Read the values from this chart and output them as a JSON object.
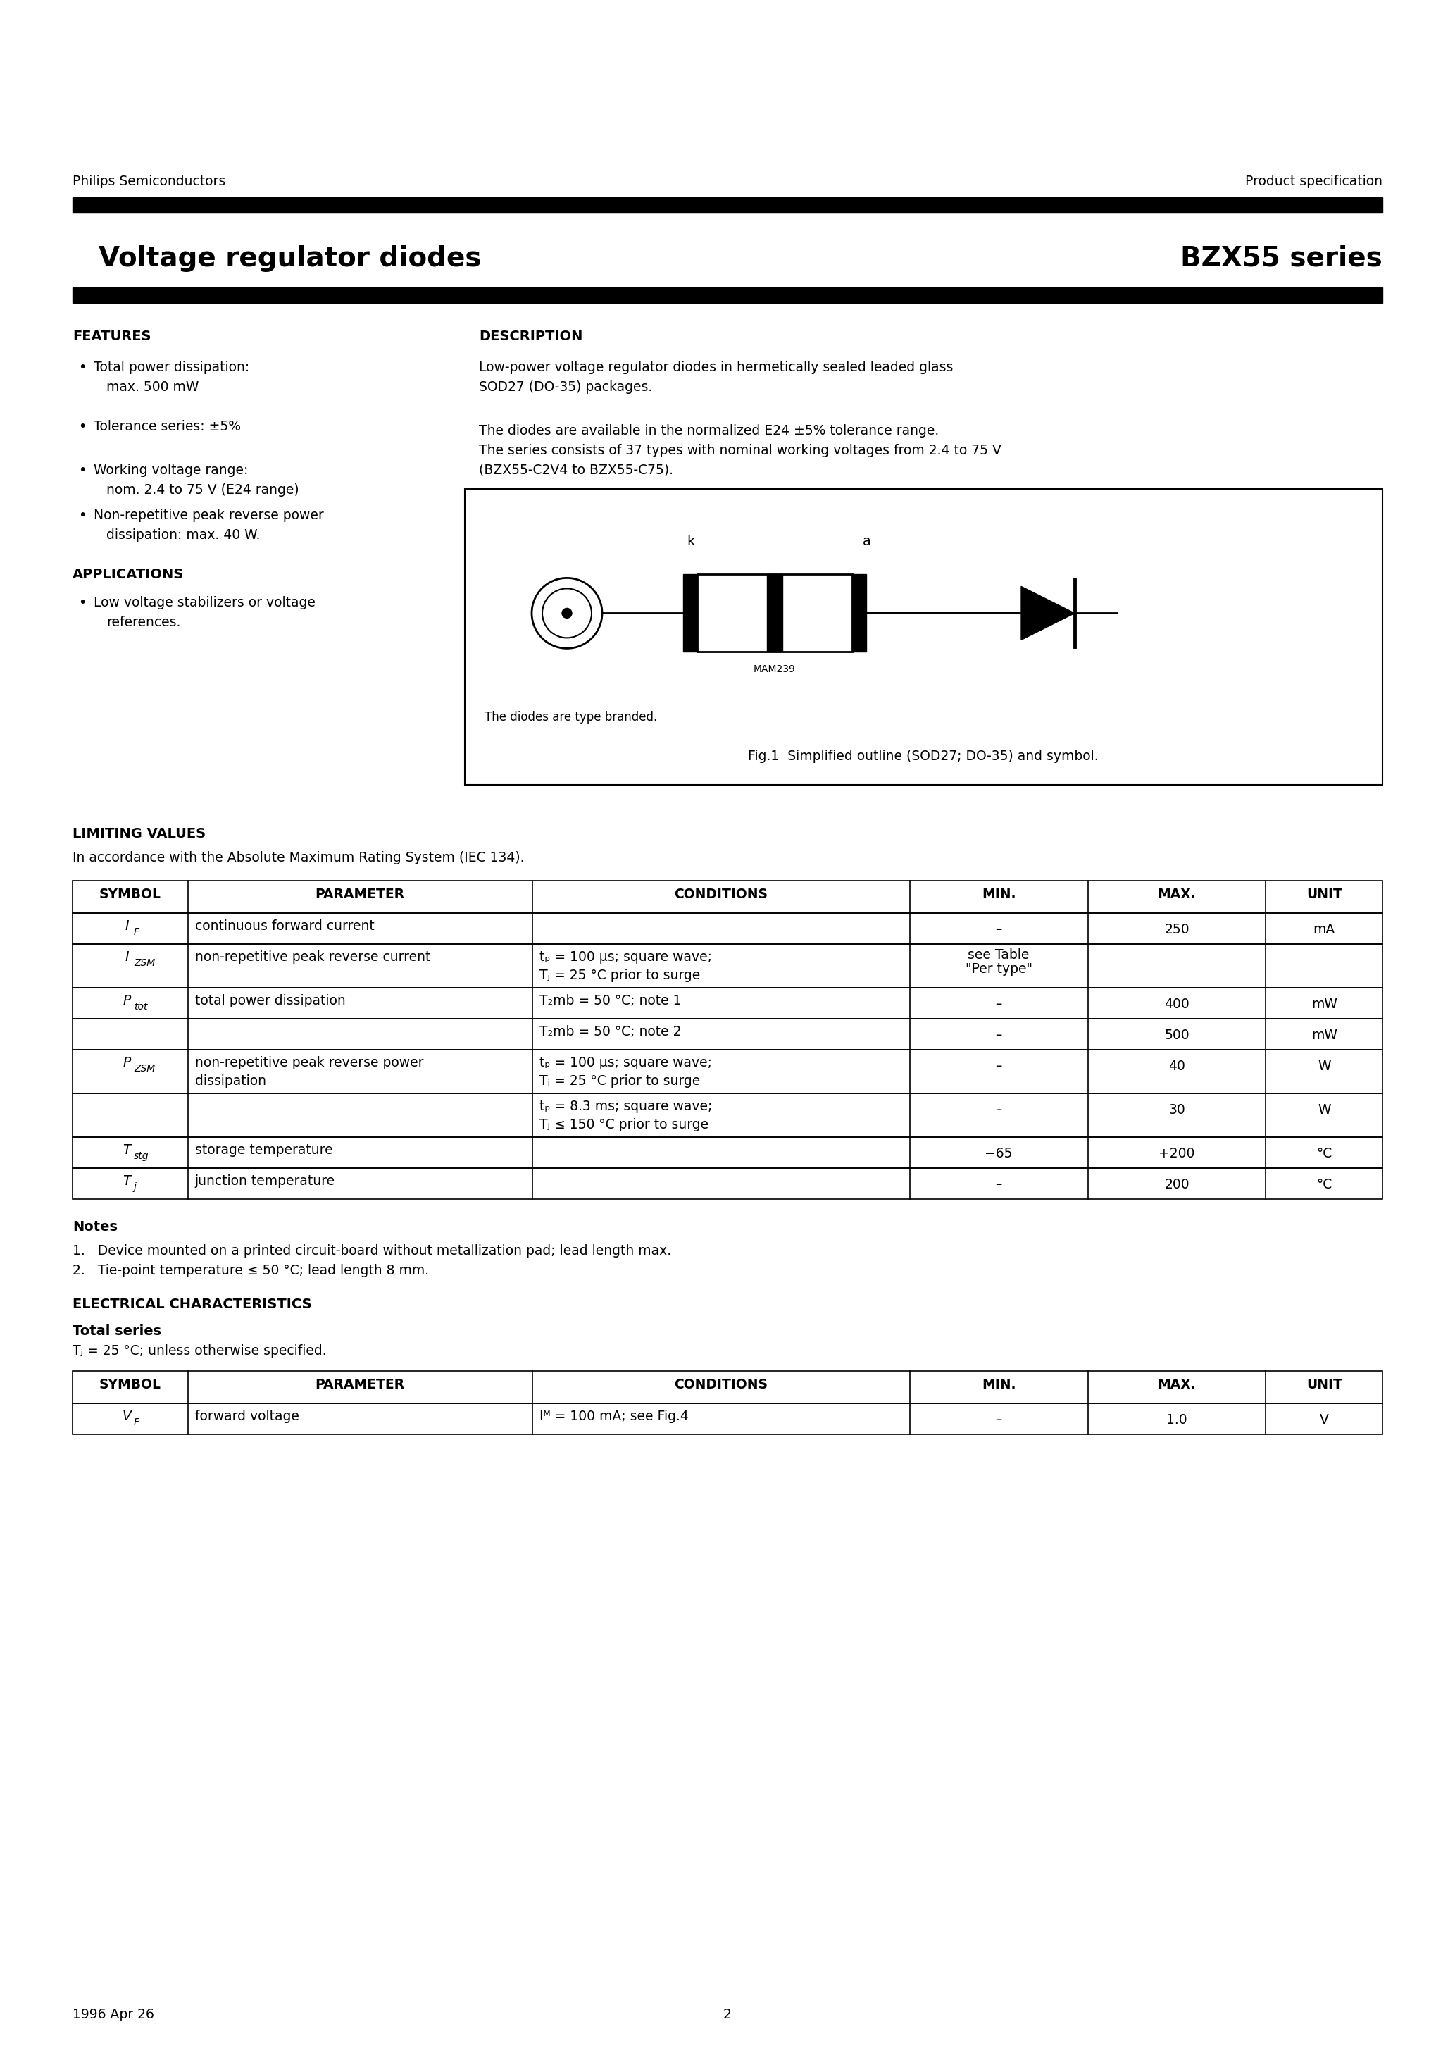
{
  "header_left": "Philips Semiconductors",
  "header_right": "Product specification",
  "page_title_left": "  Voltage regulator diodes",
  "page_title_right": "BZX55 series",
  "features_title": "FEATURES",
  "description_title": "DESCRIPTION",
  "desc_line1": "Low-power voltage regulator diodes in hermetically sealed leaded glass",
  "desc_line2": "SOD27 (DO-35) packages.",
  "desc_line3": "The diodes are available in the normalized E24 ±5% tolerance range.",
  "desc_line4": "The series consists of 37 types with nominal working voltages from 2.4 to 75 V",
  "desc_line5": "(BZX55-C2V4 to BZX55-C75).",
  "feat_items": [
    [
      "Total power dissipation:",
      "max. 500 mW"
    ],
    [
      "Tolerance series: ±5%",
      null
    ],
    [
      "Working voltage range:",
      "nom. 2.4 to 75 V (E24 range)"
    ],
    [
      "Non-repetitive peak reverse power",
      "dissipation: max. 40 W."
    ]
  ],
  "applications_title": "APPLICATIONS",
  "app_items": [
    [
      "Low voltage stabilizers or voltage",
      "references."
    ]
  ],
  "fig_caption1": "The diodes are type branded.",
  "fig_caption2": "Fig.1  Simplified outline (SOD27; DO-35) and symbol.",
  "limiting_title": "LIMITING VALUES",
  "limiting_sub": "In accordance with the Absolute Maximum Rating System (IEC 134).",
  "tbl_headers": [
    "SYMBOL",
    "PARAMETER",
    "CONDITIONS",
    "MIN.",
    "MAX.",
    "UNIT"
  ],
  "lv_rows": [
    {
      "sm": "I",
      "ss": "F",
      "param": "continuous forward current",
      "cond": [],
      "min": "–",
      "max": "250",
      "unit": "mA",
      "rh": 44
    },
    {
      "sm": "I",
      "ss": "ZSM",
      "param": "non-repetitive peak reverse current",
      "cond": [
        "tₚ = 100 μs; square wave;",
        "Tⱼ = 25 °C prior to surge"
      ],
      "min": "see Table\n\"Per type\"",
      "max": "",
      "unit": "",
      "rh": 62
    },
    {
      "sm": "P",
      "ss": "tot",
      "param": "total power dissipation",
      "cond": [
        "T₂mb = 50 °C; note 1"
      ],
      "min": "–",
      "max": "400",
      "unit": "mW",
      "rh": 44
    },
    {
      "sm": "",
      "ss": "",
      "param": "",
      "cond": [
        "T₂mb = 50 °C; note 2"
      ],
      "min": "–",
      "max": "500",
      "unit": "mW",
      "rh": 44
    },
    {
      "sm": "P",
      "ss": "ZSM",
      "param": "non-repetitive peak reverse power\ndissipation",
      "cond": [
        "tₚ = 100 μs; square wave;",
        "Tⱼ = 25 °C prior to surge"
      ],
      "min": "–",
      "max": "40",
      "unit": "W",
      "rh": 62
    },
    {
      "sm": "",
      "ss": "",
      "param": "",
      "cond": [
        "tₚ = 8.3 ms; square wave;",
        "Tⱼ ≤ 150 °C prior to surge"
      ],
      "min": "–",
      "max": "30",
      "unit": "W",
      "rh": 62
    },
    {
      "sm": "T",
      "ss": "stg",
      "param": "storage temperature",
      "cond": [],
      "min": "−65",
      "max": "+200",
      "unit": "°C",
      "rh": 44
    },
    {
      "sm": "T",
      "ss": "j",
      "param": "junction temperature",
      "cond": [],
      "min": "–",
      "max": "200",
      "unit": "°C",
      "rh": 44
    }
  ],
  "notes_title": "Notes",
  "note1": "1.   Device mounted on a printed circuit-board without metallization pad; lead length max.",
  "note2": "2.   Tie-point temperature ≤ 50 °C; lead length 8 mm.",
  "ec_title": "ELECTRICAL CHARACTERISTICS",
  "ec_sub1": "Total series",
  "ec_sub2": "Tⱼ = 25 °C; unless otherwise specified.",
  "ec_headers": [
    "SYMBOL",
    "PARAMETER",
    "CONDITIONS",
    "MIN.",
    "MAX.",
    "UNIT"
  ],
  "ec_row": {
    "sm": "V",
    "ss": "F",
    "param": "forward voltage",
    "cond": "Iᴹ = 100 mA; see Fig.4",
    "min": "–",
    "max": "1.0",
    "unit": "V"
  },
  "footer_left": "1996 Apr 26",
  "footer_page": "2"
}
